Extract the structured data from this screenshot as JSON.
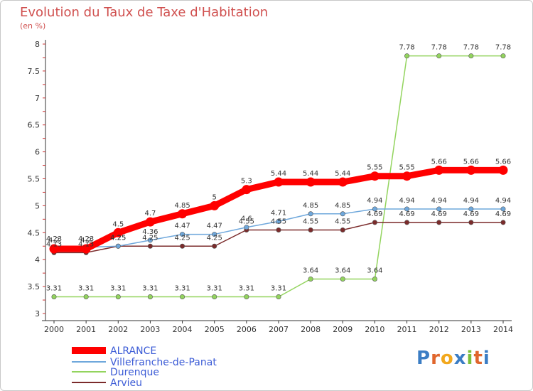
{
  "title": "Evolution du Taux de Taxe d'Habitation",
  "subtitle": "(en %)",
  "logo": "Proxiti",
  "chart_data": {
    "type": "line",
    "title": "Evolution du Taux de Taxe d'Habitation",
    "ylabel": "(en %)",
    "x": [
      "2000",
      "2001",
      "2002",
      "2003",
      "2004",
      "2005",
      "2006",
      "2007",
      "2008",
      "2009",
      "2010",
      "2011",
      "2012",
      "2013",
      "2014"
    ],
    "ylim": [
      3,
      8
    ],
    "yticks": [
      "3",
      "3.5",
      "4",
      "4.5",
      "5",
      "5.5",
      "6",
      "6.5",
      "7",
      "7.5",
      "8"
    ],
    "grid": false,
    "legend": "bottom-left",
    "series": [
      {
        "name": "ALRANCE",
        "color": "#ff0000",
        "values": [
          4.2,
          4.2,
          4.5,
          4.7,
          4.85,
          5,
          5.3,
          5.44,
          5.44,
          5.44,
          5.55,
          5.55,
          5.66,
          5.66,
          5.66
        ],
        "labels": [
          "4.2",
          "4.2",
          "4.5",
          "4.7",
          "4.85",
          "5",
          "5.3",
          "5.44",
          "5.44",
          "5.44",
          "5.55",
          "5.55",
          "5.66",
          "5.66",
          "5.66"
        ]
      },
      {
        "name": "Villefranche-de-Panat",
        "color": "#6fa8dc",
        "values": [
          4.23,
          4.23,
          4.25,
          4.36,
          4.47,
          4.47,
          4.6,
          4.71,
          4.85,
          4.85,
          4.94,
          4.94,
          4.94,
          4.94,
          4.94
        ],
        "labels": [
          "4.23",
          "4.23",
          "4.25",
          "4.36",
          "4.47",
          "4.47",
          "4.6",
          "4.71",
          "4.85",
          "4.85",
          "4.94",
          "4.94",
          "4.94",
          "4.94",
          "4.94"
        ]
      },
      {
        "name": "Durenque",
        "color": "#93d45e",
        "values": [
          3.31,
          3.31,
          3.31,
          3.31,
          3.31,
          3.31,
          3.31,
          3.31,
          3.64,
          3.64,
          3.64,
          7.78,
          7.78,
          7.78,
          7.78
        ],
        "labels": [
          "3.31",
          "3.31",
          "3.31",
          "3.31",
          "3.31",
          "3.31",
          "3.31",
          "3.31",
          "3.64",
          "3.64",
          "3.64",
          "7.78",
          "7.78",
          "7.78",
          "7.78"
        ]
      },
      {
        "name": "Arvieu",
        "color": "#7b2b2b",
        "values": [
          4.13,
          4.13,
          4.25,
          4.25,
          4.25,
          4.25,
          4.55,
          4.55,
          4.55,
          4.55,
          4.69,
          4.69,
          4.69,
          4.69,
          4.69
        ],
        "labels": [
          "4.13",
          "4.13",
          "4.25",
          "4.25",
          "4.25",
          "4.25",
          "4.55",
          "4.55",
          "4.55",
          "4.55",
          "4.69",
          "4.69",
          "4.69",
          "4.69",
          "4.69"
        ]
      }
    ]
  }
}
